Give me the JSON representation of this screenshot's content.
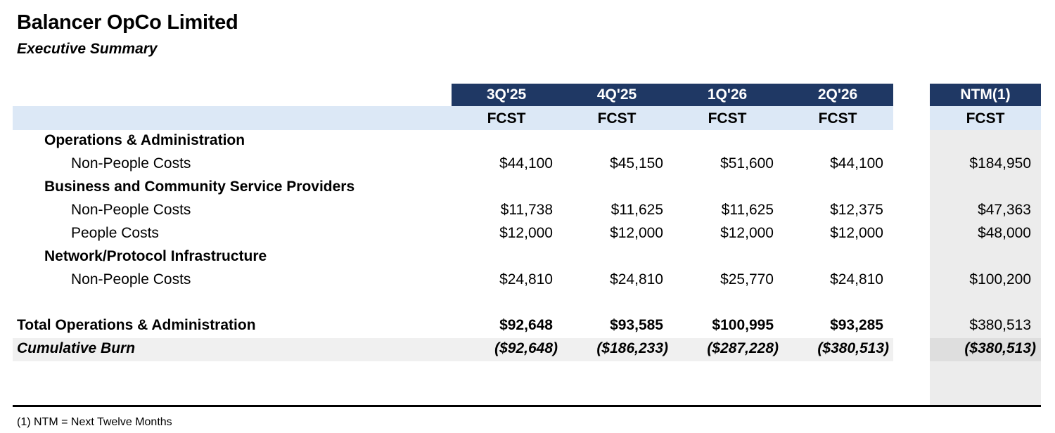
{
  "header": {
    "title": "Balancer OpCo Limited",
    "subtitle": "Executive Summary"
  },
  "columns": [
    {
      "period": "3Q'25",
      "type": "FCST"
    },
    {
      "period": "4Q'25",
      "type": "FCST"
    },
    {
      "period": "1Q'26",
      "type": "FCST"
    },
    {
      "period": "2Q'26",
      "type": "FCST"
    }
  ],
  "ntm": {
    "period": "NTM(1)",
    "type": "FCST"
  },
  "rows": [
    {
      "kind": "cat",
      "label": "Operations & Administration",
      "values": [
        "",
        "",
        "",
        ""
      ],
      "ntm": ""
    },
    {
      "kind": "sub",
      "label": "Non-People Costs",
      "values": [
        "$44,100",
        "$45,150",
        "$51,600",
        "$44,100"
      ],
      "ntm": "$184,950"
    },
    {
      "kind": "cat",
      "label": "Business and Community Service Providers",
      "values": [
        "",
        "",
        "",
        ""
      ],
      "ntm": ""
    },
    {
      "kind": "sub",
      "label": "Non-People Costs",
      "values": [
        "$11,738",
        "$11,625",
        "$11,625",
        "$12,375"
      ],
      "ntm": "$47,363"
    },
    {
      "kind": "sub",
      "label": "People Costs",
      "values": [
        "$12,000",
        "$12,000",
        "$12,000",
        "$12,000"
      ],
      "ntm": "$48,000"
    },
    {
      "kind": "cat",
      "label": "Network/Protocol Infrastructure",
      "values": [
        "",
        "",
        "",
        ""
      ],
      "ntm": ""
    },
    {
      "kind": "sub",
      "label": "Non-People Costs",
      "values": [
        "$24,810",
        "$24,810",
        "$25,770",
        "$24,810"
      ],
      "ntm": "$100,200"
    },
    {
      "kind": "total",
      "label": "Total Operations & Administration",
      "values": [
        "$92,648",
        "$93,585",
        "$100,995",
        "$93,285"
      ],
      "ntm": "$380,513"
    },
    {
      "kind": "cum",
      "label": "Cumulative Burn",
      "values": [
        "($92,648)",
        "($186,233)",
        "($287,228)",
        "($380,513)"
      ],
      "ntm": "($380,513)"
    }
  ],
  "footnote": "(1) NTM = Next Twelve Months"
}
